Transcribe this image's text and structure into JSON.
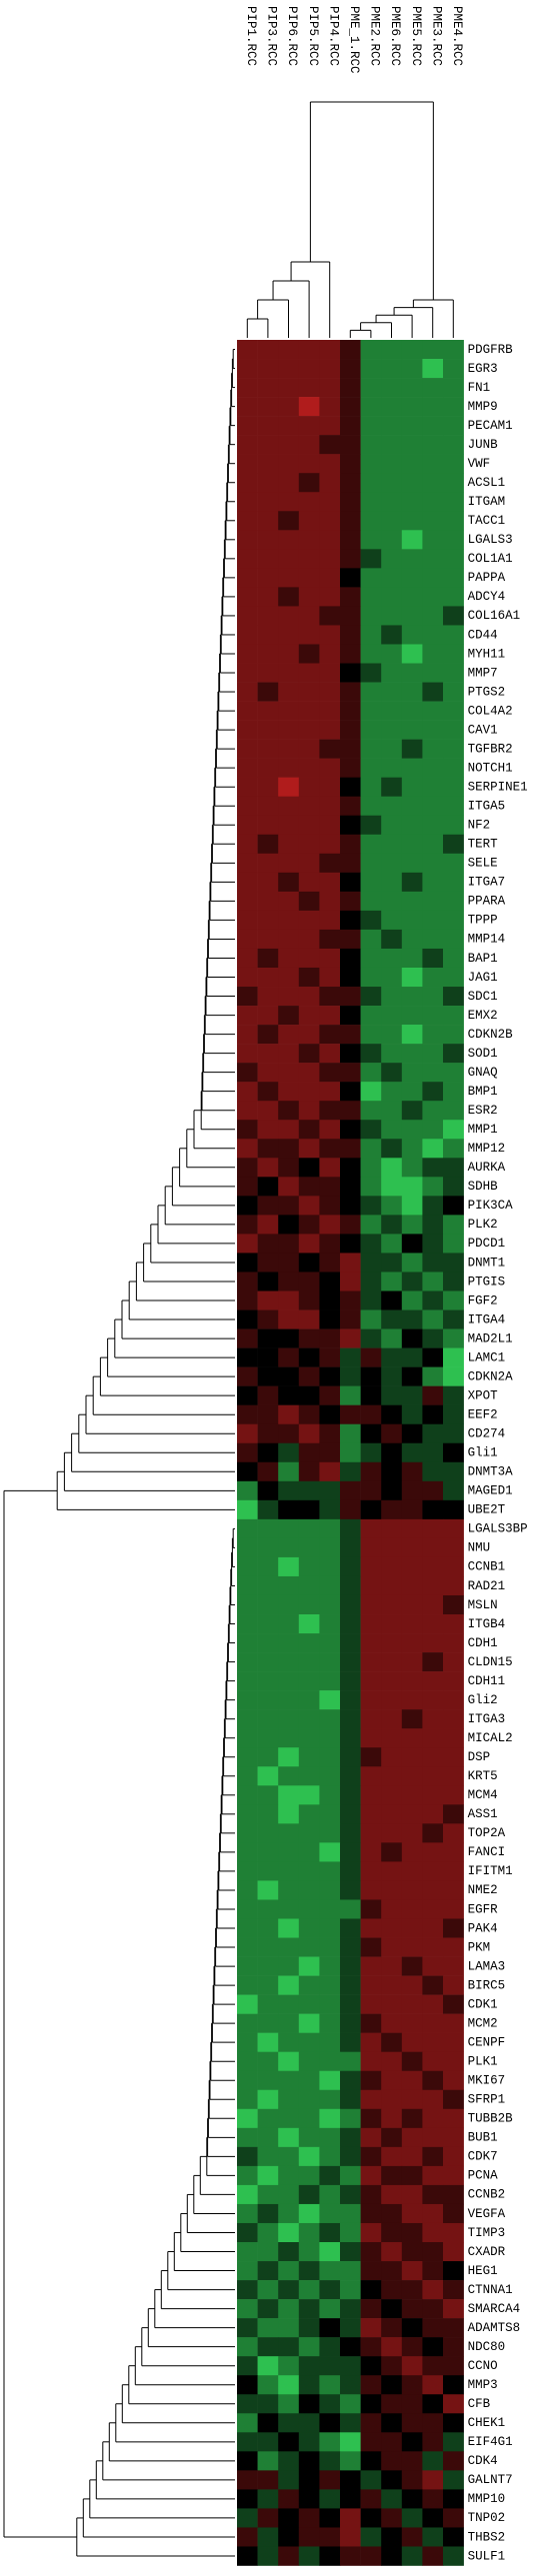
{
  "chart_data": {
    "type": "heatmap",
    "columns": [
      "PIP1.RCC",
      "PIP3.RCC",
      "PIP6.RCC",
      "PIP5.RCC",
      "PIP4.RCC",
      "PME_1.RCC",
      "PME2.RCC",
      "PME6.RCC",
      "PME5.RCC",
      "PME3.RCC",
      "PME4.RCC"
    ],
    "rows": [
      "PDGFRB",
      "EGR3",
      "FN1",
      "MMP9",
      "PECAM1",
      "JUNB",
      "VWF",
      "ACSL1",
      "ITGAM",
      "TACC1",
      "LGALS3",
      "COL1A1",
      "PAPPA",
      "ADCY4",
      "COL16A1",
      "CD44",
      "MYH11",
      "MMP7",
      "PTGS2",
      "COL4A2",
      "CAV1",
      "TGFBR2",
      "NOTCH1",
      "SERPINE1",
      "ITGA5",
      "NF2",
      "TERT",
      "SELE",
      "ITGA7",
      "PPARA",
      "TPPP",
      "MMP14",
      "BAP1",
      "JAG1",
      "SDC1",
      "EMX2",
      "CDKN2B",
      "SOD1",
      "GNAQ",
      "BMP1",
      "ESR2",
      "MMP1",
      "MMP12",
      "AURKA",
      "SDHB",
      "PIK3CA",
      "PLK2",
      "PDCD1",
      "DNMT1",
      "PTGIS",
      "FGF2",
      "ITGA4",
      "MAD2L1",
      "LAMC1",
      "CDKN2A",
      "XPOT",
      "EEF2",
      "CD274",
      "Gli1",
      "DNMT3A",
      "MAGED1",
      "UBE2T",
      "LGALS3BP",
      "NMU",
      "CCNB1",
      "RAD21",
      "MSLN",
      "ITGB4",
      "CDH1",
      "CLDN15",
      "CDH11",
      "Gli2",
      "ITGA3",
      "MICAL2",
      "DSP",
      "KRT5",
      "MCM4",
      "ASS1",
      "TOP2A",
      "FANCI",
      "IFITM1",
      "NME2",
      "EGFR",
      "PAK4",
      "PKM",
      "LAMA3",
      "BIRC5",
      "CDK1",
      "MCM2",
      "CENPF",
      "PLK1",
      "MKI67",
      "SFRP1",
      "TUBB2B",
      "BUB1",
      "CDK7",
      "PCNA",
      "CCNB2",
      "VEGFA",
      "TIMP3",
      "CXADR",
      "HEG1",
      "CTNNA1",
      "SMARCA4",
      "ADAMTS8",
      "NDC80",
      "CCNO",
      "MMP3",
      "CFB",
      "CHEK1",
      "EIF4G1",
      "CDK4",
      "GALNT7",
      "MMP10",
      "TNP02",
      "THBS2",
      "SULF1"
    ],
    "values": [
      [
        2,
        2,
        2,
        2,
        2,
        1,
        -2,
        -2,
        -2,
        -2,
        -2
      ],
      [
        2,
        2,
        2,
        2,
        2,
        1,
        -2,
        -2,
        -2,
        -3,
        -2
      ],
      [
        2,
        2,
        2,
        2,
        2,
        1,
        -2,
        -2,
        -2,
        -2,
        -2
      ],
      [
        2,
        2,
        2,
        3,
        2,
        1,
        -2,
        -2,
        -2,
        -2,
        -2
      ],
      [
        2,
        2,
        2,
        2,
        2,
        1,
        -2,
        -2,
        -2,
        -2,
        -2
      ],
      [
        2,
        2,
        2,
        2,
        1,
        1,
        -2,
        -2,
        -2,
        -2,
        -2
      ],
      [
        2,
        2,
        2,
        2,
        2,
        1,
        -2,
        -2,
        -2,
        -2,
        -2
      ],
      [
        2,
        2,
        2,
        1,
        2,
        1,
        -2,
        -2,
        -2,
        -2,
        -2
      ],
      [
        2,
        2,
        2,
        2,
        2,
        1,
        -2,
        -2,
        -2,
        -2,
        -2
      ],
      [
        2,
        2,
        1,
        2,
        2,
        1,
        -2,
        -2,
        -2,
        -2,
        -2
      ],
      [
        2,
        2,
        2,
        2,
        2,
        1,
        -2,
        -2,
        -3,
        -2,
        -2
      ],
      [
        2,
        2,
        2,
        2,
        2,
        1,
        -1,
        -2,
        -2,
        -2,
        -2
      ],
      [
        2,
        2,
        2,
        2,
        2,
        0,
        -2,
        -2,
        -2,
        -2,
        -2
      ],
      [
        2,
        2,
        1,
        2,
        2,
        1,
        -2,
        -2,
        -2,
        -2,
        -2
      ],
      [
        2,
        2,
        2,
        2,
        1,
        1,
        -2,
        -2,
        -2,
        -2,
        -1
      ],
      [
        2,
        2,
        2,
        2,
        2,
        1,
        -2,
        -1,
        -2,
        -2,
        -2
      ],
      [
        2,
        2,
        2,
        1,
        2,
        1,
        -2,
        -2,
        -3,
        -2,
        -2
      ],
      [
        2,
        2,
        2,
        2,
        2,
        0,
        -1,
        -2,
        -2,
        -2,
        -2
      ],
      [
        2,
        1,
        2,
        2,
        2,
        1,
        -2,
        -2,
        -2,
        -1,
        -2
      ],
      [
        2,
        2,
        2,
        2,
        2,
        1,
        -2,
        -2,
        -2,
        -2,
        -2
      ],
      [
        2,
        2,
        2,
        2,
        2,
        1,
        -2,
        -2,
        -2,
        -2,
        -2
      ],
      [
        2,
        2,
        2,
        2,
        1,
        1,
        -2,
        -2,
        -1,
        -2,
        -2
      ],
      [
        2,
        2,
        2,
        2,
        2,
        1,
        -2,
        -2,
        -2,
        -2,
        -2
      ],
      [
        2,
        2,
        3,
        2,
        2,
        0,
        -2,
        -1,
        -2,
        -2,
        -2
      ],
      [
        2,
        2,
        2,
        2,
        2,
        1,
        -2,
        -2,
        -2,
        -2,
        -2
      ],
      [
        2,
        2,
        2,
        2,
        2,
        0,
        -1,
        -2,
        -2,
        -2,
        -2
      ],
      [
        2,
        1,
        2,
        2,
        2,
        1,
        -2,
        -2,
        -2,
        -2,
        -1
      ],
      [
        2,
        2,
        2,
        2,
        1,
        1,
        -2,
        -2,
        -2,
        -2,
        -2
      ],
      [
        2,
        2,
        1,
        2,
        2,
        0,
        -2,
        -2,
        -1,
        -2,
        -2
      ],
      [
        2,
        2,
        2,
        1,
        2,
        1,
        -2,
        -2,
        -2,
        -2,
        -2
      ],
      [
        2,
        2,
        2,
        2,
        2,
        0,
        -1,
        -2,
        -2,
        -2,
        -2
      ],
      [
        2,
        2,
        2,
        2,
        1,
        1,
        -2,
        -1,
        -2,
        -2,
        -2
      ],
      [
        2,
        1,
        2,
        2,
        2,
        0,
        -2,
        -2,
        -2,
        -1,
        -2
      ],
      [
        2,
        2,
        2,
        1,
        2,
        0,
        -2,
        -2,
        -3,
        -2,
        -2
      ],
      [
        1,
        2,
        2,
        2,
        1,
        1,
        -1,
        -2,
        -2,
        -2,
        -1
      ],
      [
        2,
        2,
        1,
        2,
        2,
        0,
        -2,
        -2,
        -2,
        -2,
        -2
      ],
      [
        2,
        1,
        2,
        2,
        1,
        1,
        -2,
        -2,
        -3,
        -2,
        -2
      ],
      [
        2,
        2,
        2,
        1,
        2,
        0,
        -1,
        -2,
        -2,
        -2,
        -1
      ],
      [
        1,
        2,
        2,
        2,
        1,
        1,
        -2,
        -1,
        -2,
        -2,
        -2
      ],
      [
        2,
        1,
        2,
        2,
        2,
        0,
        -3,
        -2,
        -2,
        -1,
        -2
      ],
      [
        2,
        2,
        1,
        2,
        1,
        1,
        -2,
        -2,
        -1,
        -2,
        -2
      ],
      [
        1,
        2,
        2,
        1,
        2,
        0,
        -1,
        -2,
        -2,
        -2,
        -3
      ],
      [
        2,
        1,
        1,
        2,
        1,
        1,
        -2,
        -1,
        -2,
        -3,
        -2
      ],
      [
        1,
        2,
        1,
        0,
        2,
        0,
        -2,
        -3,
        -2,
        -1,
        -1
      ],
      [
        1,
        0,
        2,
        1,
        1,
        0,
        -2,
        -3,
        -3,
        -2,
        -1
      ],
      [
        0,
        1,
        1,
        2,
        1,
        0,
        -1,
        -2,
        -3,
        -1,
        0
      ],
      [
        1,
        2,
        0,
        1,
        2,
        1,
        -2,
        -1,
        -2,
        -1,
        -2
      ],
      [
        2,
        1,
        1,
        2,
        1,
        0,
        -1,
        -2,
        0,
        -1,
        -2
      ],
      [
        0,
        1,
        1,
        0,
        1,
        2,
        -1,
        -1,
        -2,
        -1,
        -1
      ],
      [
        1,
        0,
        1,
        1,
        0,
        2,
        -1,
        -2,
        -1,
        -2,
        -1
      ],
      [
        1,
        2,
        2,
        1,
        0,
        1,
        -1,
        0,
        -2,
        -1,
        -2
      ],
      [
        0,
        1,
        2,
        2,
        0,
        1,
        -2,
        -1,
        -1,
        -2,
        -1
      ],
      [
        1,
        0,
        0,
        1,
        1,
        2,
        -1,
        -2,
        0,
        -1,
        -2
      ],
      [
        0,
        0,
        1,
        0,
        1,
        -1,
        1,
        -1,
        -1,
        0,
        -3
      ],
      [
        1,
        0,
        0,
        1,
        0,
        -1,
        0,
        -1,
        0,
        -2,
        -3
      ],
      [
        0,
        1,
        0,
        0,
        1,
        -2,
        0,
        -1,
        -1,
        1,
        -1
      ],
      [
        1,
        1,
        2,
        1,
        0,
        1,
        1,
        0,
        -1,
        0,
        -1
      ],
      [
        2,
        1,
        1,
        2,
        1,
        -2,
        0,
        1,
        0,
        -1,
        -1
      ],
      [
        1,
        0,
        -1,
        1,
        1,
        -2,
        -1,
        0,
        -1,
        -1,
        0
      ],
      [
        0,
        1,
        -2,
        1,
        2,
        -1,
        1,
        0,
        1,
        -1,
        -1
      ],
      [
        -2,
        0,
        -1,
        -1,
        -1,
        1,
        1,
        0,
        1,
        1,
        -1
      ],
      [
        -3,
        -1,
        0,
        0,
        -1,
        1,
        0,
        1,
        1,
        0,
        0
      ],
      [
        -2,
        -2,
        -2,
        -2,
        -2,
        -1,
        2,
        2,
        2,
        2,
        2
      ],
      [
        -2,
        -2,
        -2,
        -2,
        -2,
        -1,
        2,
        2,
        2,
        2,
        2
      ],
      [
        -2,
        -2,
        -3,
        -2,
        -2,
        -1,
        2,
        2,
        2,
        2,
        2
      ],
      [
        -2,
        -2,
        -2,
        -2,
        -2,
        -1,
        2,
        2,
        2,
        2,
        2
      ],
      [
        -2,
        -2,
        -2,
        -2,
        -2,
        -1,
        2,
        2,
        2,
        2,
        1
      ],
      [
        -2,
        -2,
        -2,
        -3,
        -2,
        -1,
        2,
        2,
        2,
        2,
        2
      ],
      [
        -2,
        -2,
        -2,
        -2,
        -2,
        -1,
        2,
        2,
        2,
        2,
        2
      ],
      [
        -2,
        -2,
        -2,
        -2,
        -2,
        -1,
        2,
        2,
        2,
        1,
        2
      ],
      [
        -2,
        -2,
        -2,
        -2,
        -2,
        -1,
        2,
        2,
        2,
        2,
        2
      ],
      [
        -2,
        -2,
        -2,
        -2,
        -3,
        -1,
        2,
        2,
        2,
        2,
        2
      ],
      [
        -2,
        -2,
        -2,
        -2,
        -2,
        -1,
        2,
        2,
        1,
        2,
        2
      ],
      [
        -2,
        -2,
        -2,
        -2,
        -2,
        -1,
        2,
        2,
        2,
        2,
        2
      ],
      [
        -2,
        -2,
        -3,
        -2,
        -2,
        -1,
        1,
        2,
        2,
        2,
        2
      ],
      [
        -2,
        -3,
        -2,
        -2,
        -2,
        -1,
        2,
        2,
        2,
        2,
        2
      ],
      [
        -2,
        -2,
        -3,
        -3,
        -2,
        -1,
        2,
        2,
        2,
        2,
        2
      ],
      [
        -2,
        -2,
        -3,
        -2,
        -2,
        -1,
        2,
        2,
        2,
        2,
        1
      ],
      [
        -2,
        -2,
        -2,
        -2,
        -2,
        -1,
        2,
        2,
        2,
        1,
        2
      ],
      [
        -2,
        -2,
        -2,
        -2,
        -3,
        -1,
        2,
        1,
        2,
        2,
        2
      ],
      [
        -2,
        -2,
        -2,
        -2,
        -2,
        -1,
        2,
        2,
        2,
        2,
        2
      ],
      [
        -2,
        -3,
        -2,
        -2,
        -2,
        -1,
        2,
        2,
        2,
        2,
        2
      ],
      [
        -2,
        -2,
        -2,
        -2,
        -2,
        -2,
        1,
        2,
        2,
        2,
        2
      ],
      [
        -2,
        -2,
        -3,
        -2,
        -2,
        -1,
        2,
        2,
        2,
        2,
        1
      ],
      [
        -2,
        -2,
        -2,
        -2,
        -2,
        -1,
        1,
        2,
        2,
        2,
        2
      ],
      [
        -2,
        -2,
        -2,
        -3,
        -2,
        -1,
        2,
        2,
        1,
        2,
        2
      ],
      [
        -2,
        -2,
        -3,
        -2,
        -2,
        -1,
        2,
        2,
        2,
        1,
        2
      ],
      [
        -3,
        -2,
        -2,
        -2,
        -2,
        -1,
        2,
        2,
        2,
        2,
        1
      ],
      [
        -2,
        -2,
        -2,
        -3,
        -2,
        -1,
        1,
        2,
        2,
        2,
        2
      ],
      [
        -2,
        -3,
        -2,
        -2,
        -2,
        -1,
        2,
        1,
        2,
        2,
        2
      ],
      [
        -2,
        -2,
        -3,
        -2,
        -2,
        -2,
        2,
        2,
        1,
        2,
        2
      ],
      [
        -2,
        -2,
        -2,
        -2,
        -3,
        -1,
        1,
        2,
        2,
        1,
        2
      ],
      [
        -2,
        -3,
        -2,
        -2,
        -2,
        -1,
        2,
        2,
        2,
        2,
        1
      ],
      [
        -3,
        -2,
        -2,
        -2,
        -3,
        -2,
        1,
        2,
        1,
        2,
        2
      ],
      [
        -2,
        -2,
        -3,
        -2,
        -2,
        -1,
        2,
        1,
        2,
        2,
        2
      ],
      [
        -1,
        -2,
        -2,
        -3,
        -2,
        -1,
        1,
        2,
        2,
        1,
        2
      ],
      [
        -2,
        -3,
        -2,
        -2,
        -1,
        -2,
        2,
        1,
        1,
        2,
        2
      ],
      [
        -3,
        -2,
        -2,
        -1,
        -2,
        -1,
        1,
        2,
        2,
        1,
        1
      ],
      [
        -2,
        -1,
        -2,
        -3,
        -2,
        -2,
        1,
        1,
        2,
        2,
        1
      ],
      [
        -1,
        -2,
        -3,
        -2,
        -1,
        -2,
        2,
        1,
        1,
        2,
        2
      ],
      [
        -2,
        -2,
        -1,
        -2,
        -3,
        -1,
        1,
        2,
        1,
        1,
        2
      ],
      [
        -2,
        -1,
        -2,
        -1,
        -2,
        -2,
        1,
        1,
        2,
        1,
        0
      ],
      [
        -1,
        -2,
        -1,
        -2,
        -1,
        -2,
        0,
        1,
        1,
        2,
        1
      ],
      [
        -2,
        -1,
        -2,
        -1,
        -2,
        -1,
        1,
        0,
        1,
        1,
        2
      ],
      [
        -1,
        -2,
        -2,
        -1,
        0,
        -1,
        2,
        1,
        0,
        1,
        1
      ],
      [
        -2,
        -1,
        -1,
        -2,
        -1,
        0,
        1,
        2,
        1,
        0,
        1
      ],
      [
        -1,
        -3,
        -2,
        -1,
        -1,
        -1,
        0,
        1,
        2,
        1,
        1
      ],
      [
        0,
        -2,
        -3,
        -1,
        -2,
        -1,
        1,
        0,
        1,
        2,
        0
      ],
      [
        -1,
        -1,
        -2,
        0,
        -1,
        -2,
        0,
        1,
        1,
        0,
        2
      ],
      [
        -2,
        0,
        -1,
        -1,
        0,
        -1,
        1,
        0,
        1,
        1,
        0
      ],
      [
        -1,
        -1,
        0,
        -1,
        -2,
        -3,
        1,
        1,
        0,
        1,
        -1
      ],
      [
        0,
        -2,
        -1,
        0,
        -1,
        -2,
        0,
        1,
        1,
        -1,
        1
      ],
      [
        1,
        1,
        -1,
        0,
        1,
        0,
        -1,
        0,
        1,
        2,
        -1
      ],
      [
        0,
        -1,
        1,
        0,
        -1,
        0,
        1,
        -1,
        0,
        1,
        0
      ],
      [
        -1,
        1,
        0,
        1,
        0,
        2,
        0,
        1,
        -1,
        0,
        1
      ],
      [
        1,
        -1,
        0,
        1,
        1,
        2,
        -1,
        0,
        1,
        -1,
        0
      ],
      [
        0,
        -1,
        1,
        -1,
        0,
        1,
        1,
        0,
        -1,
        1,
        -1
      ]
    ],
    "low_color": "#2ec050",
    "mid_color": "#000000",
    "high_color": "#b01c1c"
  }
}
